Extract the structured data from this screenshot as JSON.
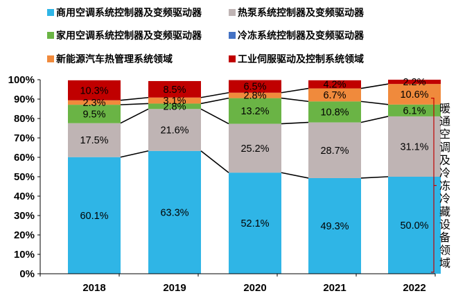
{
  "chart_data": {
    "type": "bar",
    "stacked": true,
    "categories": [
      "2018",
      "2019",
      "2020",
      "2021",
      "2022"
    ],
    "ylim": [
      0,
      100
    ],
    "yticks": [
      "0%",
      "10%",
      "20%",
      "30%",
      "40%",
      "50%",
      "60%",
      "70%",
      "80%",
      "90%",
      "100%"
    ],
    "series": [
      {
        "name": "商用空调系统控制器及变频驱动器",
        "color": "#2fb5e6",
        "values": [
          60.1,
          63.3,
          52.1,
          49.3,
          50.0
        ],
        "labels": [
          "60.1%",
          "63.3%",
          "52.1%",
          "49.3%",
          "50.0%"
        ]
      },
      {
        "name": "热泵系统控制器及变频驱动器",
        "color": "#bfb4b4",
        "values": [
          17.5,
          21.6,
          25.2,
          28.7,
          31.1
        ],
        "labels": [
          "17.5%",
          "21.6%",
          "25.2%",
          "28.7%",
          "31.1%"
        ]
      },
      {
        "name": "家用空调系统控制器及变频驱动器",
        "color": "#6ab445",
        "values": [
          9.5,
          2.8,
          13.2,
          10.8,
          6.1
        ],
        "labels": [
          "9.5%",
          "2.8%",
          "13.2%",
          "10.8%",
          "6.1%"
        ]
      },
      {
        "name": "冷冻系统控制器及变频驱动器",
        "color": "#4472c4",
        "values": [
          0,
          0,
          0,
          0,
          0
        ],
        "labels": [
          "",
          "",
          "",
          "",
          ""
        ]
      },
      {
        "name": "新能源汽车热管理系统领域",
        "color": "#f08a3c",
        "values": [
          2.3,
          3.1,
          2.8,
          6.7,
          10.6
        ],
        "labels": [
          "2.3%",
          "3.1%",
          "2.8%",
          "6.7%",
          "10.6%"
        ]
      },
      {
        "name": "工业伺服驱动及控制系统领域",
        "color": "#c00000",
        "values": [
          10.3,
          8.5,
          6.5,
          4.2,
          2.2
        ],
        "labels": [
          "10.3%",
          "8.5%",
          "6.5%",
          "4.2%",
          "2.2%"
        ]
      }
    ],
    "annotation": {
      "text": "暖通空调及冷冻冷藏设备领域"
    },
    "legend_position": "top",
    "grid": false
  }
}
